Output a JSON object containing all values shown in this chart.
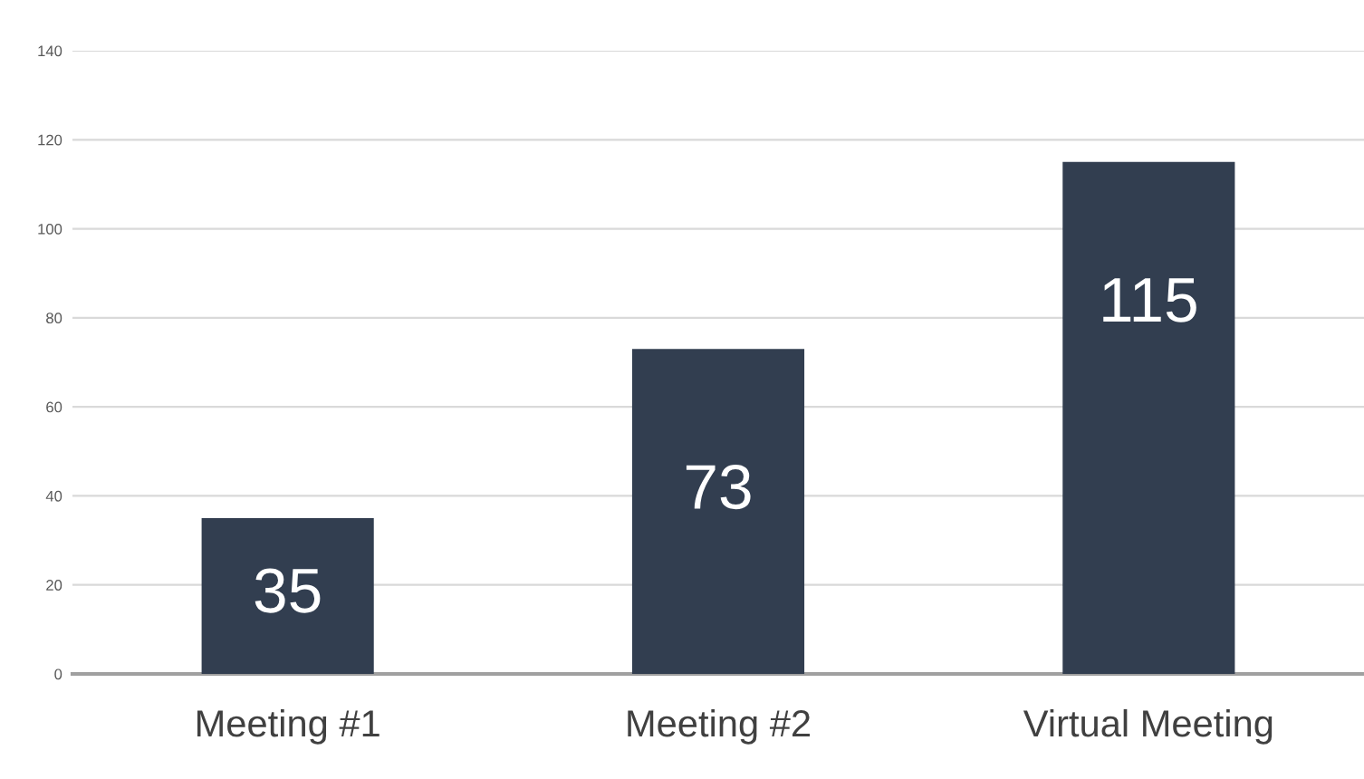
{
  "chart_data": {
    "type": "bar",
    "categories": [
      "Meeting #1",
      "Meeting #2",
      "Virtual Meeting"
    ],
    "values": [
      35,
      73,
      115
    ],
    "color": "#323e50",
    "ylim": [
      0,
      140
    ],
    "yticks": [
      0,
      20,
      40,
      60,
      80,
      100,
      120,
      140
    ],
    "grid": "y",
    "data_labels": true
  }
}
